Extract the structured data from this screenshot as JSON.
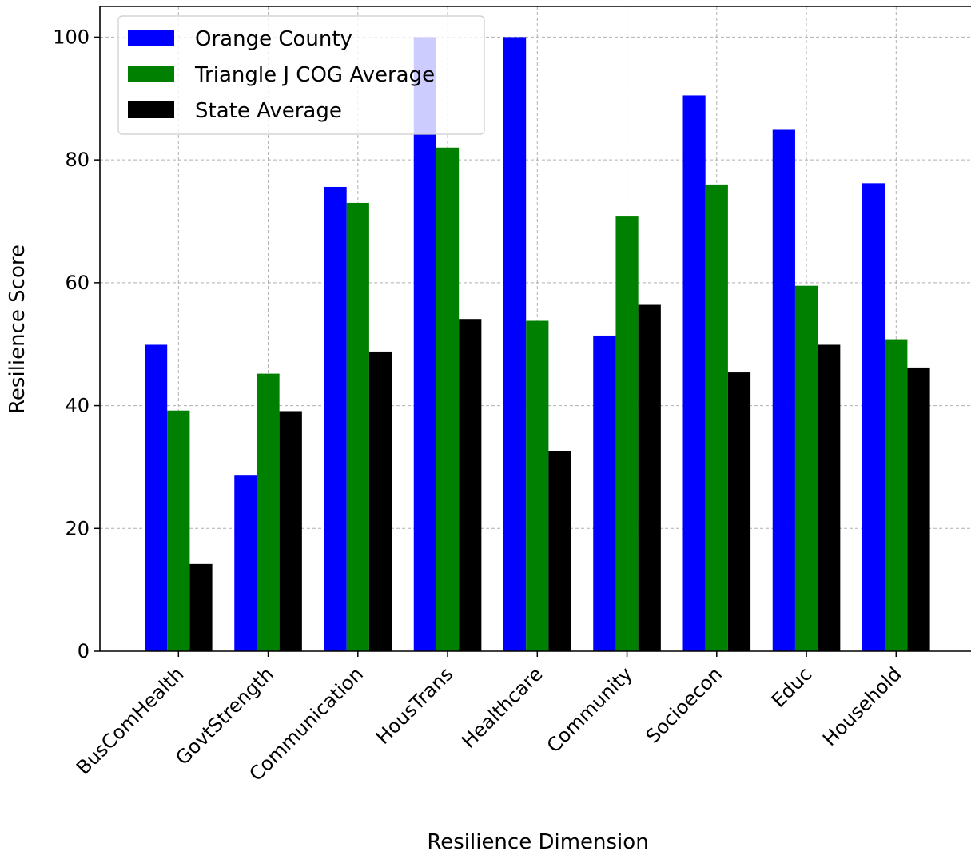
{
  "chart_data": {
    "type": "bar",
    "title": "",
    "xlabel": "Resilience Dimension",
    "ylabel": "Resilience Score",
    "ylim": [
      0,
      105
    ],
    "yticks": [
      0,
      20,
      40,
      60,
      80,
      100
    ],
    "grid": true,
    "legend_position": "top-left",
    "categories": [
      "BusComHealth",
      "GovtStrength",
      "Communication",
      "HousTrans",
      "Healthcare",
      "Community",
      "Socioecon",
      "Educ",
      "Household"
    ],
    "series": [
      {
        "name": "Orange County",
        "color": "#0000ff",
        "values": [
          49.9,
          28.6,
          75.6,
          100,
          100,
          51.4,
          90.5,
          84.9,
          76.2
        ]
      },
      {
        "name": "Triangle J COG Average",
        "color": "#008000",
        "values": [
          39.2,
          45.2,
          73.0,
          82.0,
          53.8,
          70.9,
          76.0,
          59.5,
          50.8
        ]
      },
      {
        "name": "State Average",
        "color": "#000000",
        "values": [
          14.2,
          39.1,
          48.8,
          54.1,
          32.6,
          56.4,
          45.4,
          49.9,
          46.2
        ]
      }
    ]
  }
}
